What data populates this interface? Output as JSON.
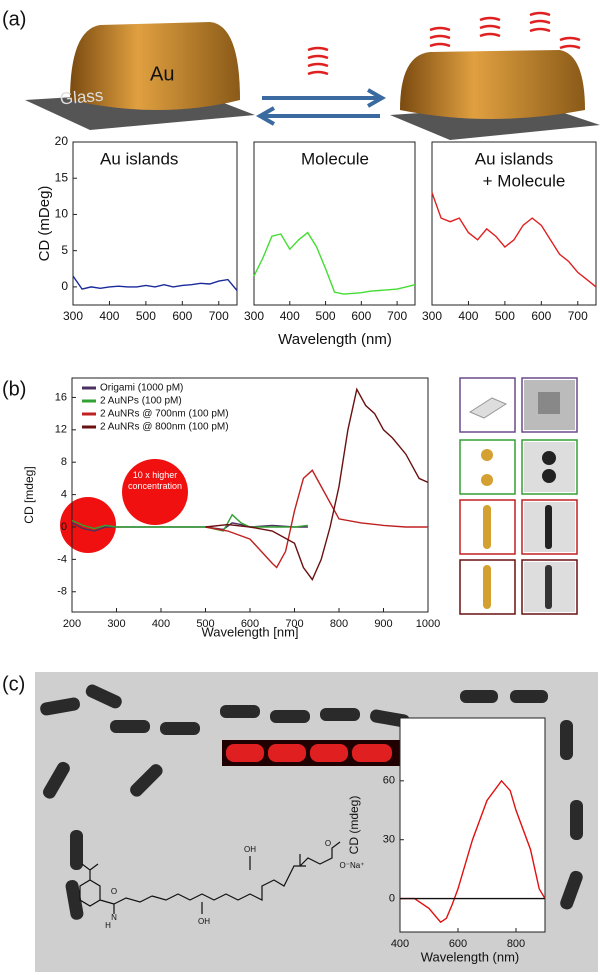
{
  "labels": [
    "(a)",
    "(b)",
    "(c)"
  ],
  "illustration": {
    "au": "Au",
    "glass": "Glass"
  },
  "annotation": "10 x higher concentration",
  "molecule": [
    "N",
    "H",
    "O",
    "OH",
    "OH",
    "O",
    "O⁻Na⁺"
  ],
  "chart_data": [
    {
      "type": "line",
      "title": [
        "Au islands"
      ],
      "ylabel": "CD (mDeg)",
      "x": [
        300,
        325,
        350,
        375,
        400,
        425,
        450,
        475,
        500,
        525,
        550,
        575,
        600,
        625,
        650,
        675,
        700,
        725,
        750
      ],
      "xlim": [
        300,
        750
      ],
      "xticks": [
        300,
        400,
        500,
        600,
        700
      ],
      "ylim": [
        -2.5,
        20
      ],
      "yticks": [
        0,
        5,
        10,
        15,
        20
      ],
      "series": [
        {
          "color": "#1a2a9a",
          "values": [
            1.5,
            -0.3,
            0,
            -0.2,
            0,
            0.1,
            0,
            0,
            0.2,
            0,
            0.3,
            0,
            0.2,
            0.3,
            0.5,
            0.4,
            0.8,
            1,
            -0.5
          ]
        }
      ]
    },
    {
      "type": "line",
      "title": [
        "Molecule"
      ],
      "xlabel": "Wavelength (nm)",
      "x": [
        300,
        325,
        350,
        375,
        400,
        425,
        450,
        475,
        500,
        525,
        550,
        575,
        600,
        625,
        650,
        675,
        700,
        725,
        750
      ],
      "xlim": [
        300,
        750
      ],
      "xticks": [
        300,
        400,
        500,
        600,
        700
      ],
      "ylim": [
        -2.5,
        20
      ],
      "series": [
        {
          "color": "#44dd33",
          "values": [
            1.5,
            4,
            7,
            7.3,
            5.2,
            6.5,
            7.5,
            5.5,
            2.5,
            -0.7,
            -1,
            -0.9,
            -0.8,
            -0.6,
            -0.5,
            -0.4,
            -0.3,
            0,
            0.3
          ]
        }
      ]
    },
    {
      "type": "line",
      "title": [
        "Au islands",
        "+ Molecule"
      ],
      "x": [
        300,
        325,
        350,
        375,
        400,
        425,
        450,
        475,
        500,
        525,
        550,
        575,
        600,
        625,
        650,
        675,
        700,
        725,
        750
      ],
      "xlim": [
        300,
        750
      ],
      "xticks": [
        300,
        400,
        500,
        600,
        700
      ],
      "ylim": [
        -2.5,
        20
      ],
      "series": [
        {
          "color": "#e02020",
          "values": [
            13,
            9.5,
            9,
            9.5,
            7.5,
            6.5,
            8,
            7,
            5.5,
            6.5,
            8.5,
            9.5,
            8.5,
            6.5,
            4.5,
            3.5,
            2,
            1,
            0
          ]
        }
      ]
    },
    {
      "type": "line",
      "xlabel": "Wavelength [nm]",
      "ylabel": "CD [mdeg]",
      "xlim": [
        200,
        1000
      ],
      "xticks": [
        200,
        300,
        400,
        500,
        600,
        700,
        800,
        900,
        1000
      ],
      "ylim": [
        -10.5,
        18.4
      ],
      "yticks": [
        -8,
        -4,
        0,
        4,
        8,
        12,
        16
      ],
      "series": [
        {
          "name": "Origami (1000 pM)",
          "color": "#4b3060",
          "x": [
            200,
            225,
            250,
            275,
            300,
            400,
            500,
            540,
            560,
            580,
            600,
            650,
            700,
            730
          ],
          "values": [
            0.5,
            -0.2,
            -0.5,
            0,
            0,
            0,
            0,
            -0.3,
            0.5,
            0.3,
            0,
            0.2,
            0,
            0
          ]
        },
        {
          "name": "2 AuNPs (100 pM)",
          "color": "#33a033",
          "x": [
            200,
            225,
            250,
            275,
            300,
            400,
            500,
            540,
            560,
            580,
            600,
            650,
            700,
            730
          ],
          "values": [
            0.8,
            0.2,
            -0.2,
            0.2,
            0,
            0,
            0,
            -0.5,
            1.5,
            0.5,
            0,
            0,
            0,
            0.2
          ]
        },
        {
          "name": "2 AuNRs @ 700nm (100 pM)",
          "color": "#c02020",
          "x": [
            500,
            550,
            600,
            650,
            660,
            680,
            700,
            720,
            740,
            760,
            800,
            850,
            900,
            950,
            1000
          ],
          "values": [
            0,
            -0.5,
            -1.5,
            -4.5,
            -5,
            -3,
            2,
            6,
            7,
            5,
            1,
            0.5,
            0.2,
            0,
            0
          ]
        },
        {
          "name": "2 AuNRs @ 800nm (100 pM)",
          "color": "#6a1010",
          "x": [
            500,
            550,
            600,
            650,
            700,
            720,
            740,
            760,
            780,
            800,
            820,
            840,
            860,
            880,
            900,
            920,
            950,
            980,
            1000
          ],
          "values": [
            0,
            0.3,
            0,
            -0.5,
            -2,
            -5,
            -6.5,
            -4,
            0,
            5,
            12,
            17,
            15,
            14,
            12,
            11,
            9,
            6,
            5.5
          ]
        }
      ]
    },
    {
      "type": "line",
      "xlabel": "Wavelength (nm)",
      "ylabel": "CD (mdeg)",
      "xlim": [
        400,
        900
      ],
      "xticks": [
        400,
        600,
        800
      ],
      "ylim": [
        -17,
        92
      ],
      "yticks": [
        0,
        30,
        60
      ],
      "x": [
        400,
        450,
        500,
        540,
        560,
        580,
        600,
        650,
        700,
        750,
        780,
        800,
        850,
        880,
        900
      ],
      "series": [
        {
          "color": "#e01010",
          "values": [
            0,
            0,
            -5,
            -12,
            -10,
            -3,
            5,
            30,
            50,
            60,
            55,
            45,
            25,
            5,
            0
          ]
        },
        {
          "color": "#111111",
          "values": [
            0,
            0,
            0,
            0,
            0,
            0,
            0,
            0,
            0,
            0,
            0,
            0,
            0,
            0,
            0
          ]
        }
      ]
    }
  ]
}
